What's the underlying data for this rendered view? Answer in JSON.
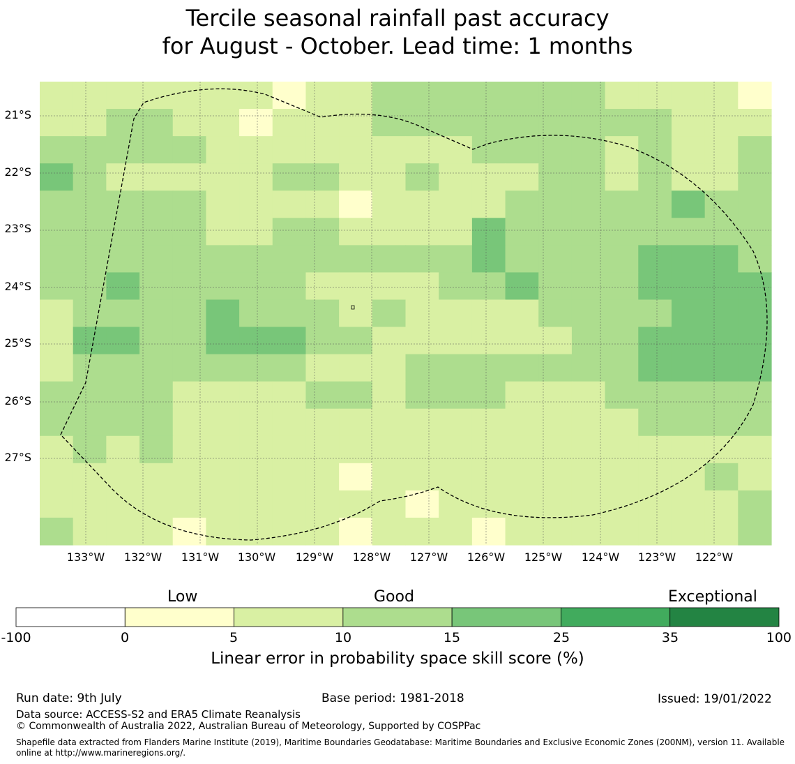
{
  "title": {
    "line1": "Tercile seasonal rainfall past accuracy",
    "line2": "for August - October. Lead time: 1 months"
  },
  "map": {
    "lat_labels": [
      "21°S",
      "22°S",
      "23°S",
      "24°S",
      "25°S",
      "26°S",
      "27°S"
    ],
    "lon_labels": [
      "133°W",
      "132°W",
      "131°W",
      "130°W",
      "129°W",
      "128°W",
      "127°W",
      "126°W",
      "125°W",
      "124°W",
      "123°W",
      "122°W"
    ],
    "grid_rows": [
      "2222222122333333322221",
      "2233221222333333333222",
      "3333322222222333323223",
      "4322222332232223323223",
      "3333322221222233333433",
      "3333322332222433333333",
      "3333333333333433334443",
      "3343333322223343334444",
      "2333343332322223333444",
      "2443344433222222334444",
      "2333333322233333334444",
      "3333222233233322233333",
      "3333222222222222223333",
      "2323222222222222222222",
      "2222222221222222222232",
      "2222222222212222222223",
      "3222122221222122222223"
    ],
    "cell_colors": {
      "1": "#ffffcc",
      "2": "#d9f0a3",
      "3": "#addd8e",
      "4": "#78c679"
    }
  },
  "colorbar": {
    "categories": [
      "Low",
      "Good",
      "Exceptional"
    ],
    "ticks": [
      "-100",
      "0",
      "5",
      "10",
      "15",
      "25",
      "35",
      "100"
    ],
    "colors": [
      "#ffffff",
      "#ffffcc",
      "#d9f0a3",
      "#addd8e",
      "#78c679",
      "#41ab5d",
      "#238443"
    ],
    "label": "Linear error in probability space skill score (%)"
  },
  "footer": {
    "run_date": "Run date: 9th July",
    "base_period": "Base period: 1981-2018",
    "issued": "Issued: 19/01/2022",
    "data_source": "Data source: ACCESS-S2 and ERA5 Climate Reanalysis",
    "copyright": "© Commonwealth of Australia 2022, Australian Bureau of Meteorology, Supported by COSPPac",
    "shapefile_note": "Shapefile data extracted from Flanders Marine Institute (2019), Maritime Boundaries Geodatabase: Maritime Boundaries and Exclusive Economic Zones (200NM), version 11. Available online at http://www.marineregions.org/."
  }
}
